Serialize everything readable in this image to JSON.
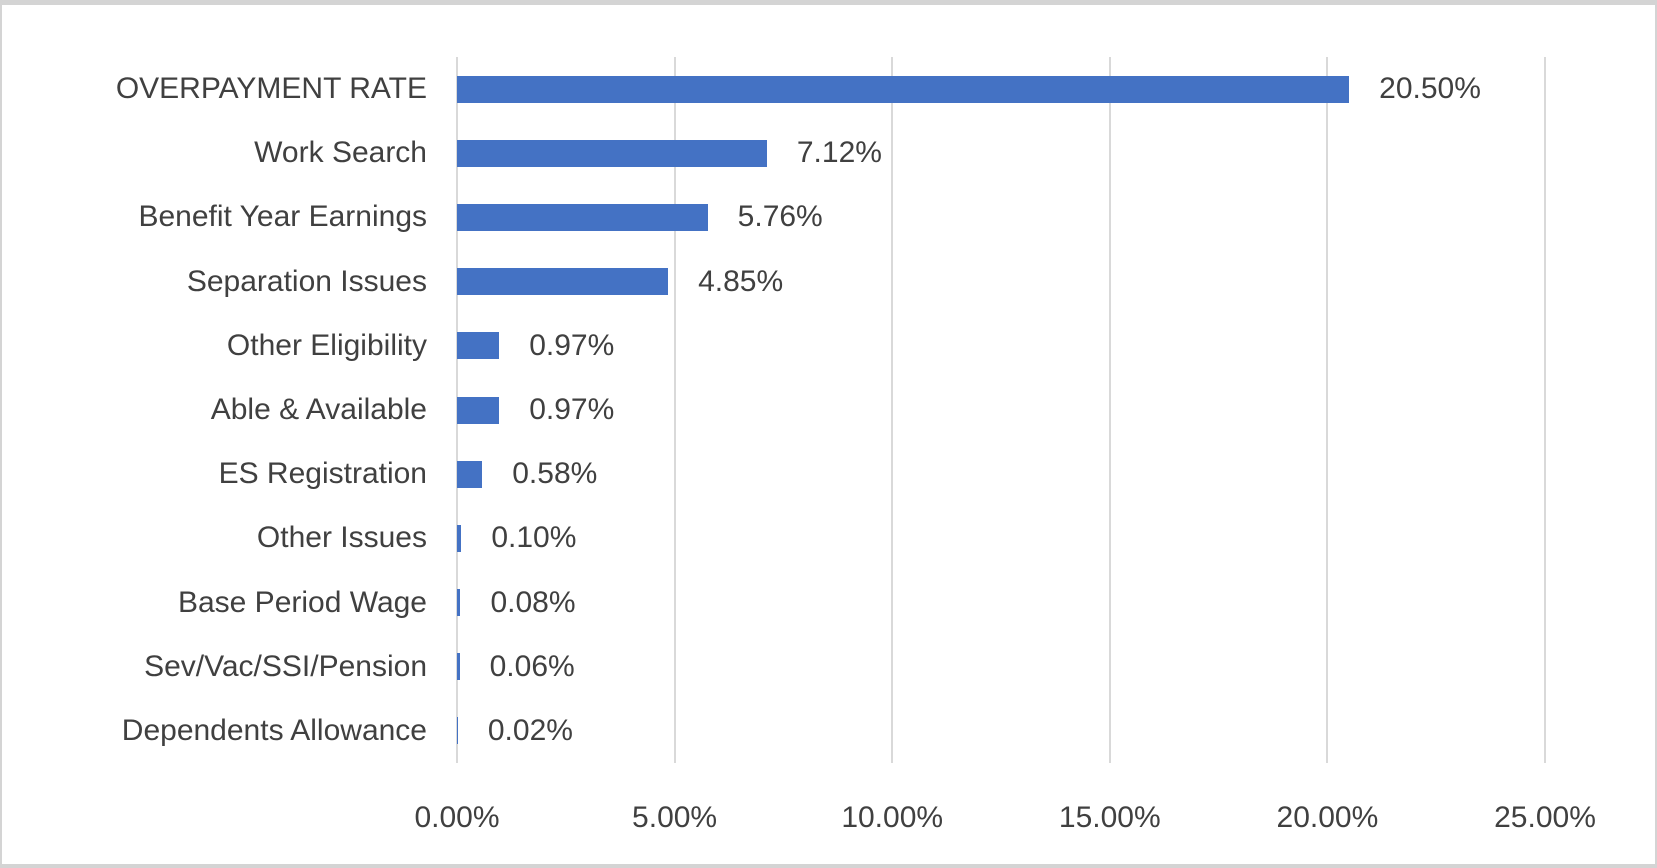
{
  "chart_data": {
    "type": "bar",
    "orientation": "horizontal",
    "title": "",
    "categories": [
      "OVERPAYMENT RATE",
      "Work Search",
      "Benefit Year Earnings",
      "Separation Issues",
      "Other Eligibility",
      "Able & Available",
      "ES Registration",
      "Other Issues",
      "Base Period Wage",
      "Sev/Vac/SSI/Pension",
      "Dependents Allowance"
    ],
    "values": [
      20.5,
      7.12,
      5.76,
      4.85,
      0.97,
      0.97,
      0.58,
      0.1,
      0.08,
      0.06,
      0.02
    ],
    "value_labels": [
      "20.50%",
      "7.12%",
      "5.76%",
      "4.85%",
      "0.97%",
      "0.97%",
      "0.58%",
      "0.10%",
      "0.08%",
      "0.06%",
      "0.02%"
    ],
    "x_axis": {
      "min": 0,
      "max": 25,
      "ticks": [
        0,
        5,
        10,
        15,
        20,
        25
      ],
      "tick_labels": [
        "0.00%",
        "5.00%",
        "10.00%",
        "15.00%",
        "20.00%",
        "25.00%"
      ]
    },
    "grid": true,
    "legend": false,
    "data_label_position": "outside-end"
  },
  "colors": {
    "bar": "#4472C4",
    "gridline": "#D9D9D9",
    "text": "#404040",
    "frame_border": "#D4D4D4",
    "background": "#FFFFFF"
  }
}
